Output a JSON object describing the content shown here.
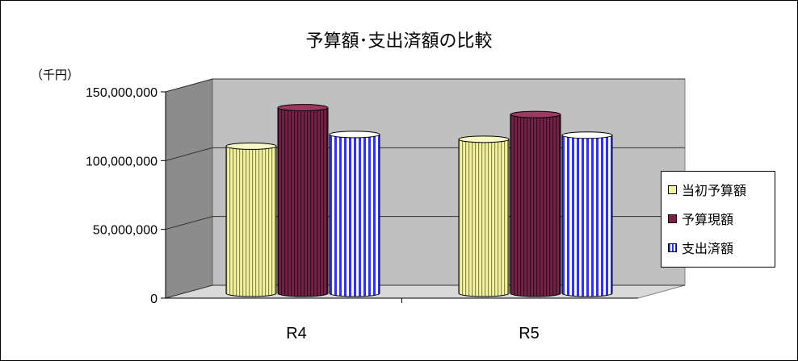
{
  "chart_data": {
    "type": "bar",
    "title": "予算額･支出済額の比較",
    "unit_label": "（千円）",
    "categories": [
      "R4",
      "R5"
    ],
    "series": [
      {
        "name": "当初予算額",
        "values": [
          107000000,
          112000000
        ],
        "color": "#f2f2a0"
      },
      {
        "name": "予算現額",
        "values": [
          135000000,
          130000000
        ],
        "color": "#7a1f45"
      },
      {
        "name": "支出済額",
        "values": [
          115500000,
          115000000
        ],
        "color": "#3030ff"
      }
    ],
    "ylim": [
      0,
      150000000
    ],
    "yticks": [
      "150,000,000",
      "100,000,000",
      "50,000,000",
      "0"
    ],
    "ytick_values": [
      150000000,
      100000000,
      50000000,
      0
    ],
    "grid": true,
    "legend_position": "right"
  }
}
